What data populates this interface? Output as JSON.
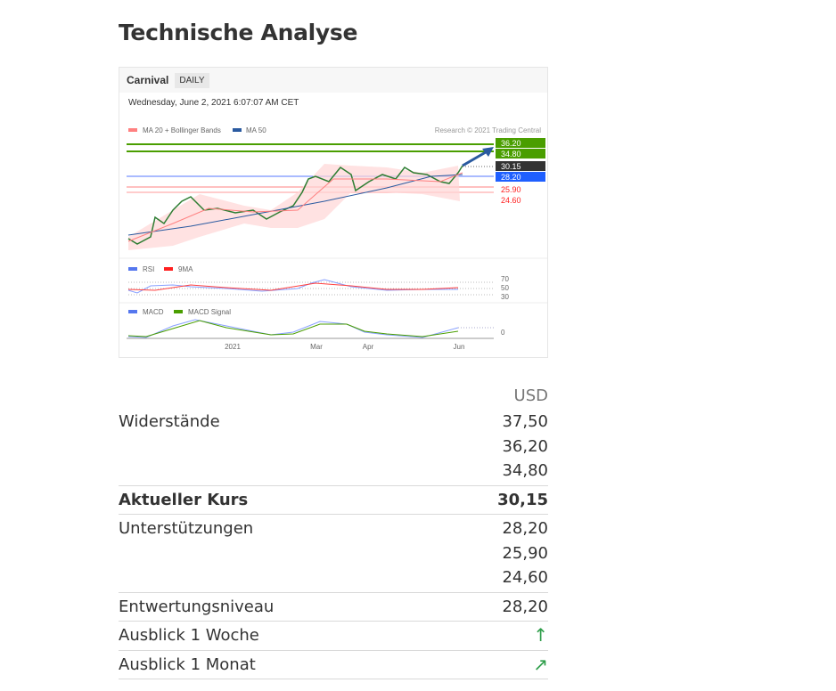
{
  "page_title": "Technische Analyse",
  "chart": {
    "instrument": "Carnival",
    "period": "DAILY",
    "timestamp": "Wednesday, June 2, 2021 6:07:07 AM CET",
    "legend_main": [
      "MA 20 + Bollinger Bands",
      "MA 50"
    ],
    "copyright": "Research © 2021 Trading Central",
    "price_labels": [
      {
        "value": "34.80",
        "color": "#4a9e00"
      },
      {
        "value": "36.20",
        "color": "#4a9e00"
      },
      {
        "value": "30.15",
        "color": "#333333"
      },
      {
        "value": "28.20",
        "color": "#1f5fff"
      },
      {
        "value": "25.90",
        "color": "#ff2020"
      },
      {
        "value": "24.60",
        "color": "#ff2020"
      }
    ],
    "rsi_legend": [
      "RSI",
      "9MA"
    ],
    "rsi_levels": [
      "70",
      "50",
      "30"
    ],
    "macd_legend": [
      "MACD",
      "MACD Signal"
    ],
    "macd_level": "0",
    "x_ticks": [
      "2021",
      "Mar",
      "Apr",
      "Jun"
    ]
  },
  "table": {
    "currency": "USD",
    "rows": [
      {
        "label": "Widerstände",
        "values": [
          "37,50",
          "36,20",
          "34,80"
        ]
      },
      {
        "label": "Aktueller Kurs",
        "values": [
          "30,15"
        ],
        "bold": true
      },
      {
        "label": "Unterstützungen",
        "values": [
          "28,20",
          "25,90",
          "24,60"
        ]
      },
      {
        "label": "Entwertungsniveau",
        "values": [
          "28,20"
        ]
      },
      {
        "label": "Ausblick 1 Woche",
        "icon": "arrow-up-icon",
        "glyph": "↑"
      },
      {
        "label": "Ausblick 1 Monat",
        "icon": "arrow-up-right-icon",
        "glyph": "↗"
      }
    ]
  },
  "colors": {
    "up": "#2e9e4a",
    "resistance": "#4a9e00",
    "support": "#ff2020"
  }
}
